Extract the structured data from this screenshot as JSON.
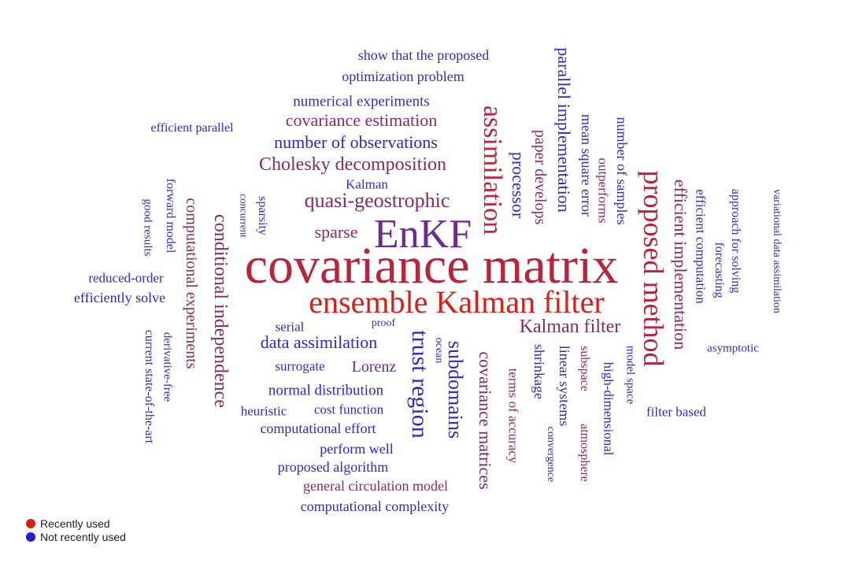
{
  "colors": {
    "recent": "#d91e18",
    "mid1": "#b8243a",
    "mid2": "#8a2a63",
    "mid3": "#5a2ca0",
    "old": "#2a27c9"
  },
  "legend": [
    {
      "label": "Recently used",
      "color": "#d91e18"
    },
    {
      "label": "Not recently used",
      "color": "#1f1fd0"
    }
  ],
  "words": [
    {
      "text": "covariance matrix",
      "color": "#b8243a"
    },
    {
      "text": "ensemble Kalman filter",
      "color": "#d91e18"
    },
    {
      "text": "EnKF",
      "color": "#6f2a8a"
    },
    {
      "text": "proposed method",
      "color": "#b8243a"
    },
    {
      "text": "assimilation",
      "color": "#c0243a"
    },
    {
      "text": "trust region",
      "color": "#3327c0"
    },
    {
      "text": "subdomains",
      "color": "#3a29b8"
    },
    {
      "text": "Kalman filter",
      "color": "#8a2a63"
    },
    {
      "text": "quasi-geostrophic",
      "color": "#8a2a63"
    },
    {
      "text": "Cholesky decomposition",
      "color": "#8a2a63"
    },
    {
      "text": "conditional independence",
      "color": "#8a2a63"
    },
    {
      "text": "covariance matrices",
      "color": "#7a2a75"
    },
    {
      "text": "efficient implementation",
      "color": "#8a2a63"
    },
    {
      "text": "data assimilation",
      "color": "#3327c0"
    },
    {
      "text": "number of observations",
      "color": "#2a27c9"
    },
    {
      "text": "covariance estimation",
      "color": "#8a2a63"
    },
    {
      "text": "computational experiments",
      "color": "#8a2a63"
    },
    {
      "text": "parallel implementation",
      "color": "#3a29b8"
    },
    {
      "text": "processor",
      "color": "#3a29b8"
    },
    {
      "text": "paper develops",
      "color": "#8a2a63"
    },
    {
      "text": "numerical experiments",
      "color": "#3a29b8"
    },
    {
      "text": "sparse",
      "color": "#8a2a63"
    },
    {
      "text": "Lorenz",
      "color": "#6a2a90"
    },
    {
      "text": "normal distribution",
      "color": "#2a27c9"
    },
    {
      "text": "optimization problem",
      "color": "#3a29b8"
    },
    {
      "text": "show that the proposed",
      "color": "#3a29b8"
    },
    {
      "text": "mean square error",
      "color": "#3a29b8"
    },
    {
      "text": "number of samples",
      "color": "#3a29b8"
    },
    {
      "text": "outperforms",
      "color": "#8a2a63"
    },
    {
      "text": "efficient computation",
      "color": "#3a29b8"
    },
    {
      "text": "forecasting",
      "color": "#3a29b8"
    },
    {
      "text": "approach for solving",
      "color": "#3a29b8"
    },
    {
      "text": "variational data assimilation",
      "color": "#3a29b8"
    },
    {
      "text": "asymptotic",
      "color": "#3a29b8"
    },
    {
      "text": "filter based",
      "color": "#3a29b8"
    },
    {
      "text": "model space",
      "color": "#3a29b8"
    },
    {
      "text": "high-dimensional",
      "color": "#2a27c9"
    },
    {
      "text": "subspace",
      "color": "#8a2a63"
    },
    {
      "text": "atmosphere",
      "color": "#8a2a63"
    },
    {
      "text": "linear systems",
      "color": "#3a29b8"
    },
    {
      "text": "convergence",
      "color": "#3a29b8"
    },
    {
      "text": "shrinkage",
      "color": "#3a29b8"
    },
    {
      "text": "terms of accuracy",
      "color": "#8a2a63"
    },
    {
      "text": "ocean",
      "color": "#3a29b8"
    },
    {
      "text": "proof",
      "color": "#3a29b8"
    },
    {
      "text": "serial",
      "color": "#3a29b8"
    },
    {
      "text": "surrogate",
      "color": "#3a29b8"
    },
    {
      "text": "heuristic",
      "color": "#3a29b8"
    },
    {
      "text": "cost function",
      "color": "#3a29b8"
    },
    {
      "text": "computational effort",
      "color": "#3a29b8"
    },
    {
      "text": "perform well",
      "color": "#2a27c9"
    },
    {
      "text": "proposed algorithm",
      "color": "#3a29b8"
    },
    {
      "text": "general circulation model",
      "color": "#8a2a63"
    },
    {
      "text": "computational complexity",
      "color": "#3a29b8"
    },
    {
      "text": "Kalman",
      "color": "#3a29b8"
    },
    {
      "text": "sparsity",
      "color": "#3a29b8"
    },
    {
      "text": "concurrent",
      "color": "#3a29b8"
    },
    {
      "text": "efficient parallel",
      "color": "#3a29b8"
    },
    {
      "text": "good results",
      "color": "#3a29b8"
    },
    {
      "text": "forward model",
      "color": "#3a29b8"
    },
    {
      "text": "reduced-order",
      "color": "#3a29b8"
    },
    {
      "text": "efficiently solve",
      "color": "#2a27c9"
    },
    {
      "text": "derivative-free",
      "color": "#3a29b8"
    },
    {
      "text": "current state-of-the-art",
      "color": "#3a29b8"
    }
  ]
}
